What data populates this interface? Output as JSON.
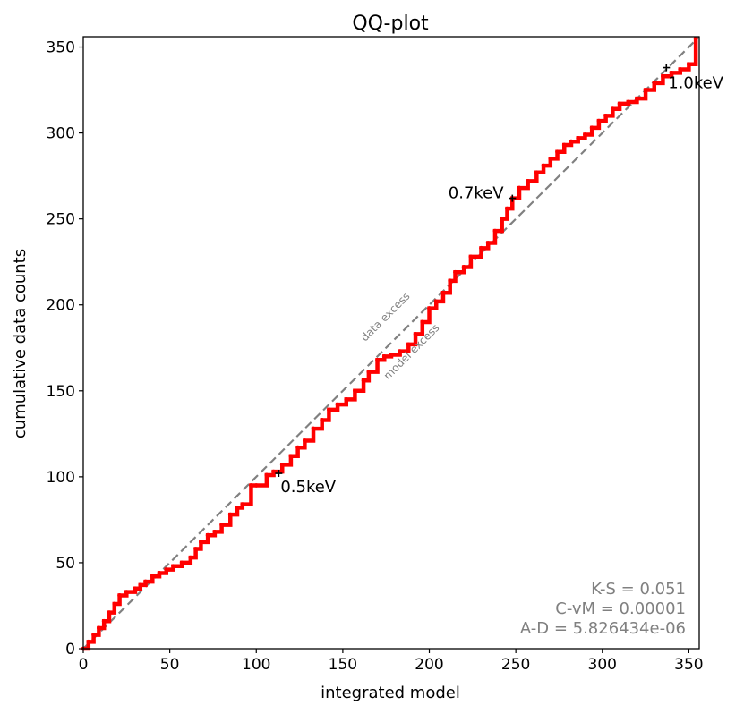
{
  "chart_data": {
    "type": "line",
    "title": "QQ-plot",
    "xlabel": "integrated model",
    "ylabel": "cumulative data counts",
    "xlim": [
      0,
      356
    ],
    "ylim": [
      0,
      356
    ],
    "xticks": [
      0,
      50,
      100,
      150,
      200,
      250,
      300,
      350
    ],
    "yticks": [
      0,
      50,
      100,
      150,
      200,
      250,
      300,
      350
    ],
    "grid": false,
    "reference_line": {
      "x": [
        0,
        356
      ],
      "y": [
        0,
        356
      ],
      "color": "#808080",
      "style": "dashed"
    },
    "diagonal_labels": {
      "above": "data excess",
      "below": "model excess"
    },
    "series": [
      {
        "color": "#ff0000",
        "x": [
          0,
          3,
          6,
          9,
          12,
          15,
          18,
          21,
          25,
          30,
          33,
          36,
          40,
          44,
          48,
          52,
          57,
          62,
          65,
          68,
          72,
          76,
          80,
          85,
          89,
          92,
          97,
          100,
          106,
          110,
          115,
          120,
          124,
          128,
          133,
          138,
          142,
          147,
          152,
          157,
          162,
          165,
          170,
          174,
          178,
          183,
          188,
          192,
          196,
          200,
          204,
          208,
          212,
          215,
          220,
          224,
          230,
          234,
          238,
          242,
          245,
          248,
          252,
          257,
          262,
          266,
          270,
          274,
          278,
          282,
          286,
          290,
          294,
          298,
          302,
          306,
          310,
          315,
          320,
          325,
          330,
          335,
          340,
          345,
          350,
          354
        ],
        "y": [
          0,
          4,
          8,
          12,
          16,
          21,
          26,
          31,
          33,
          35,
          37,
          39,
          42,
          44,
          46,
          48,
          50,
          53,
          58,
          62,
          66,
          68,
          72,
          78,
          82,
          84,
          95,
          95,
          101,
          103,
          107,
          112,
          117,
          121,
          128,
          133,
          139,
          142,
          145,
          150,
          156,
          161,
          168,
          170,
          171,
          173,
          177,
          183,
          190,
          198,
          202,
          207,
          214,
          219,
          222,
          228,
          233,
          236,
          243,
          250,
          256,
          262,
          268,
          272,
          277,
          281,
          285,
          289,
          293,
          295,
          297,
          299,
          303,
          307,
          310,
          314,
          317,
          318,
          320,
          325,
          329,
          333,
          335,
          337,
          340,
          355
        ]
      }
    ],
    "annotations": [
      {
        "text": "0.5keV",
        "x": 113,
        "y": 102,
        "label_x": 114,
        "label_y": 91
      },
      {
        "text": "0.7keV",
        "x": 248,
        "y": 262,
        "label_x": 211,
        "label_y": 262
      },
      {
        "text": "1.0keV",
        "x": 337,
        "y": 338,
        "label_x": 338,
        "label_y": 326
      }
    ],
    "stats": [
      "K-S = 0.051",
      "C-vM = 0.00001",
      "A-D = 5.826434e-06"
    ]
  }
}
